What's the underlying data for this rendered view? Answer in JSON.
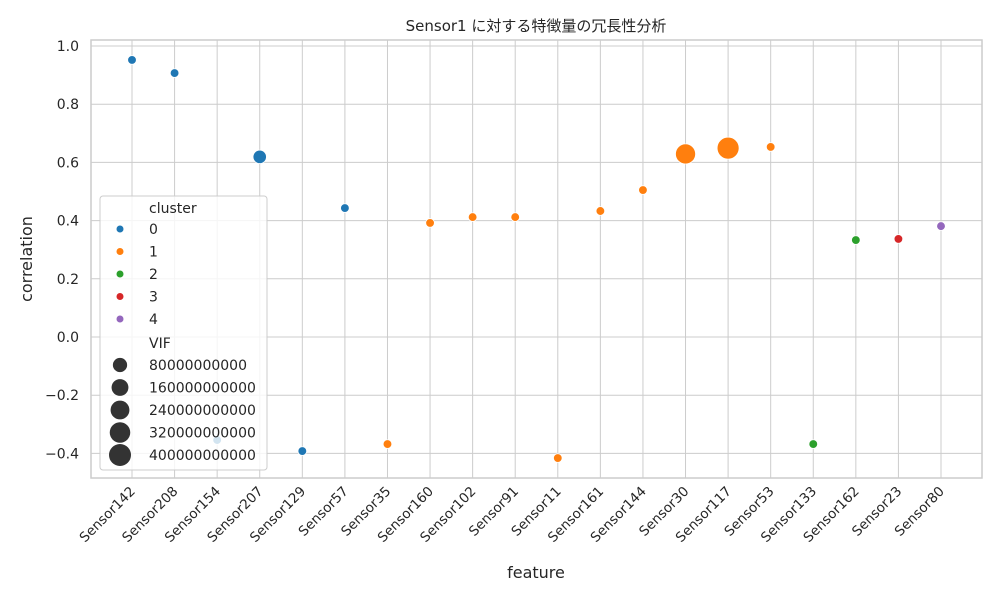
{
  "chart_data": {
    "type": "scatter",
    "title": "Sensor1 に対する特徴量の冗長性分析",
    "xlabel": "feature",
    "ylabel": "correlation",
    "ylim": [
      -0.48,
      1.02
    ],
    "yticks": [
      -0.4,
      -0.2,
      0.0,
      0.2,
      0.4,
      0.6,
      0.8,
      1.0
    ],
    "ytick_labels": [
      "−0.4",
      "−0.2",
      "0.0",
      "0.2",
      "0.4",
      "0.6",
      "0.8",
      "1.0"
    ],
    "grid": true,
    "legend_placement": "center-left",
    "categories": [
      "Sensor142",
      "Sensor208",
      "Sensor154",
      "Sensor207",
      "Sensor129",
      "Sensor57",
      "Sensor35",
      "Sensor160",
      "Sensor102",
      "Sensor91",
      "Sensor11",
      "Sensor161",
      "Sensor144",
      "Sensor30",
      "Sensor117",
      "Sensor53",
      "Sensor133",
      "Sensor162",
      "Sensor23",
      "Sensor80"
    ],
    "correlation": [
      0.952,
      0.907,
      -0.354,
      0.619,
      -0.392,
      0.443,
      -0.368,
      0.392,
      0.412,
      0.412,
      -0.416,
      0.433,
      0.505,
      0.629,
      0.649,
      0.653,
      -0.368,
      0.333,
      0.337,
      0.381
    ],
    "cluster": [
      0,
      0,
      0,
      0,
      0,
      0,
      1,
      1,
      1,
      1,
      1,
      1,
      1,
      1,
      1,
      1,
      2,
      2,
      3,
      4
    ],
    "vif": [
      1000000000,
      1000000000,
      1000000000,
      60000000000,
      1000000000,
      1000000000,
      1000000000,
      1000000000,
      1000000000,
      1000000000,
      1000000000,
      1000000000,
      1000000000,
      300000000000,
      400000000000,
      1000000000,
      1000000000,
      1000000000,
      1000000000,
      1000000000
    ],
    "legend": {
      "hue_title": "cluster",
      "hue_entries": [
        "0",
        "1",
        "2",
        "3",
        "4"
      ],
      "hue_colors": [
        "#1f77b4",
        "#ff7f0e",
        "#2ca02c",
        "#d62728",
        "#9467bd"
      ],
      "size_title": "VIF",
      "size_entries": [
        "80000000000",
        "160000000000",
        "240000000000",
        "320000000000",
        "400000000000"
      ],
      "size_values": [
        80000000000,
        160000000000,
        240000000000,
        320000000000,
        400000000000
      ]
    }
  }
}
